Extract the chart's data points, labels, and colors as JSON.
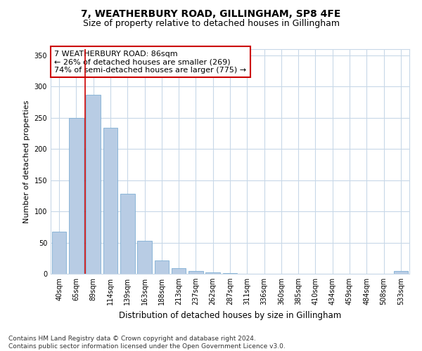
{
  "title": "7, WEATHERBURY ROAD, GILLINGHAM, SP8 4FE",
  "subtitle": "Size of property relative to detached houses in Gillingham",
  "xlabel": "Distribution of detached houses by size in Gillingham",
  "ylabel": "Number of detached properties",
  "bar_categories": [
    "40sqm",
    "65sqm",
    "89sqm",
    "114sqm",
    "139sqm",
    "163sqm",
    "188sqm",
    "213sqm",
    "237sqm",
    "262sqm",
    "287sqm",
    "311sqm",
    "336sqm",
    "360sqm",
    "385sqm",
    "410sqm",
    "434sqm",
    "459sqm",
    "484sqm",
    "508sqm",
    "533sqm"
  ],
  "bar_values": [
    67,
    250,
    287,
    234,
    128,
    53,
    21,
    9,
    5,
    2,
    1,
    0,
    0,
    0,
    0,
    0,
    0,
    0,
    0,
    0,
    4
  ],
  "bar_color": "#b8cce4",
  "bar_edge_color": "#7fafd4",
  "bar_edge_width": 0.6,
  "vline_x_index": 1.5,
  "vline_color": "#cc0000",
  "annotation_text": "7 WEATHERBURY ROAD: 86sqm\n← 26% of detached houses are smaller (269)\n74% of semi-detached houses are larger (775) →",
  "annotation_box_color": "#cc0000",
  "ylim": [
    0,
    360
  ],
  "yticks": [
    0,
    50,
    100,
    150,
    200,
    250,
    300,
    350
  ],
  "footnote": "Contains HM Land Registry data © Crown copyright and database right 2024.\nContains public sector information licensed under the Open Government Licence v3.0.",
  "bg_color": "#ffffff",
  "grid_color": "#c8d8e8",
  "title_fontsize": 10,
  "subtitle_fontsize": 9,
  "xlabel_fontsize": 8.5,
  "ylabel_fontsize": 8,
  "tick_fontsize": 7,
  "annotation_fontsize": 8,
  "footnote_fontsize": 6.5
}
